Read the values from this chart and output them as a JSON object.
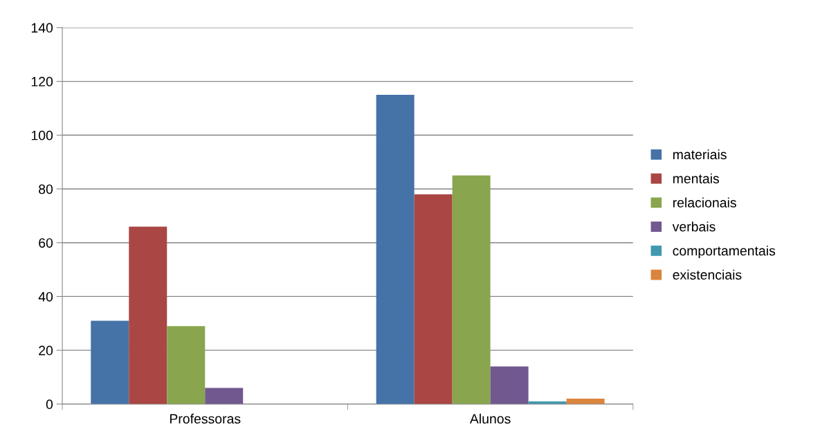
{
  "chart_data": {
    "type": "bar",
    "categories": [
      "Professoras",
      "Alunos"
    ],
    "series": [
      {
        "name": "materiais",
        "color": "#4572a7",
        "values": [
          31,
          115
        ]
      },
      {
        "name": "mentais",
        "color": "#aa4643",
        "values": [
          66,
          78
        ]
      },
      {
        "name": "relacionais",
        "color": "#89a54e",
        "values": [
          29,
          85
        ]
      },
      {
        "name": "verbais",
        "color": "#71588f",
        "values": [
          6,
          14
        ]
      },
      {
        "name": "comportamentais",
        "color": "#4198af",
        "values": [
          0,
          1
        ]
      },
      {
        "name": "existenciais",
        "color": "#db843d",
        "values": [
          0,
          2
        ]
      }
    ],
    "ylim": [
      0,
      140
    ],
    "yticks": [
      0,
      20,
      40,
      60,
      80,
      100,
      120,
      140
    ],
    "grid": "y",
    "legend": "right"
  }
}
